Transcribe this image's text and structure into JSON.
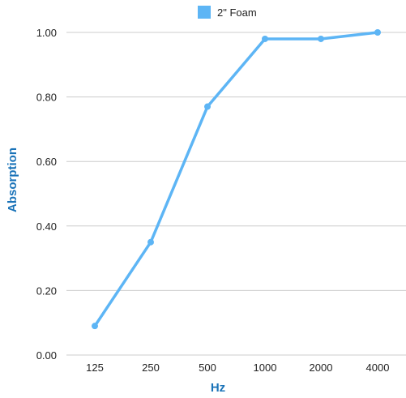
{
  "chart_data": {
    "type": "line",
    "categories": [
      "125",
      "250",
      "500",
      "1000",
      "2000",
      "4000"
    ],
    "series": [
      {
        "name": "2\" Foam",
        "values": [
          0.09,
          0.35,
          0.77,
          0.98,
          0.98,
          1.0
        ],
        "color": "#5db5f5"
      }
    ],
    "xlabel": "Hz",
    "ylabel": "Absorption",
    "ylim": [
      0,
      1
    ],
    "yticks": [
      "0.00",
      "0.20",
      "0.40",
      "0.60",
      "0.80",
      "1.00"
    ],
    "grid": "horizontal",
    "legend_position": "top-center",
    "axis_title_color": "#1a73b8",
    "gridline_color": "#cccccc"
  }
}
